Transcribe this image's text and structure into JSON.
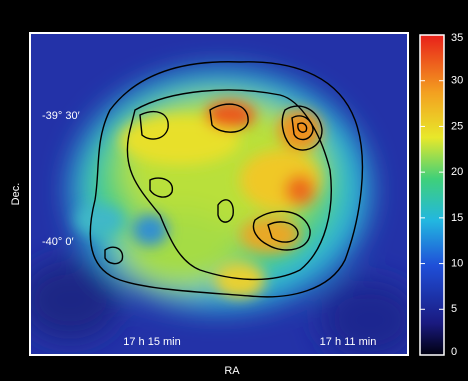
{
  "chart_data": {
    "type": "image",
    "xlabel": "RA",
    "ylabel": "Dec.",
    "x_labels": [
      "17 h 15 min",
      "17 h 11 min"
    ],
    "y_labels": [
      "-39° 30′",
      "-40° 0′"
    ],
    "colorbar": {
      "lim": [
        0,
        35
      ],
      "ticks": [
        0,
        5,
        10,
        15,
        20,
        25,
        30,
        35
      ]
    }
  }
}
